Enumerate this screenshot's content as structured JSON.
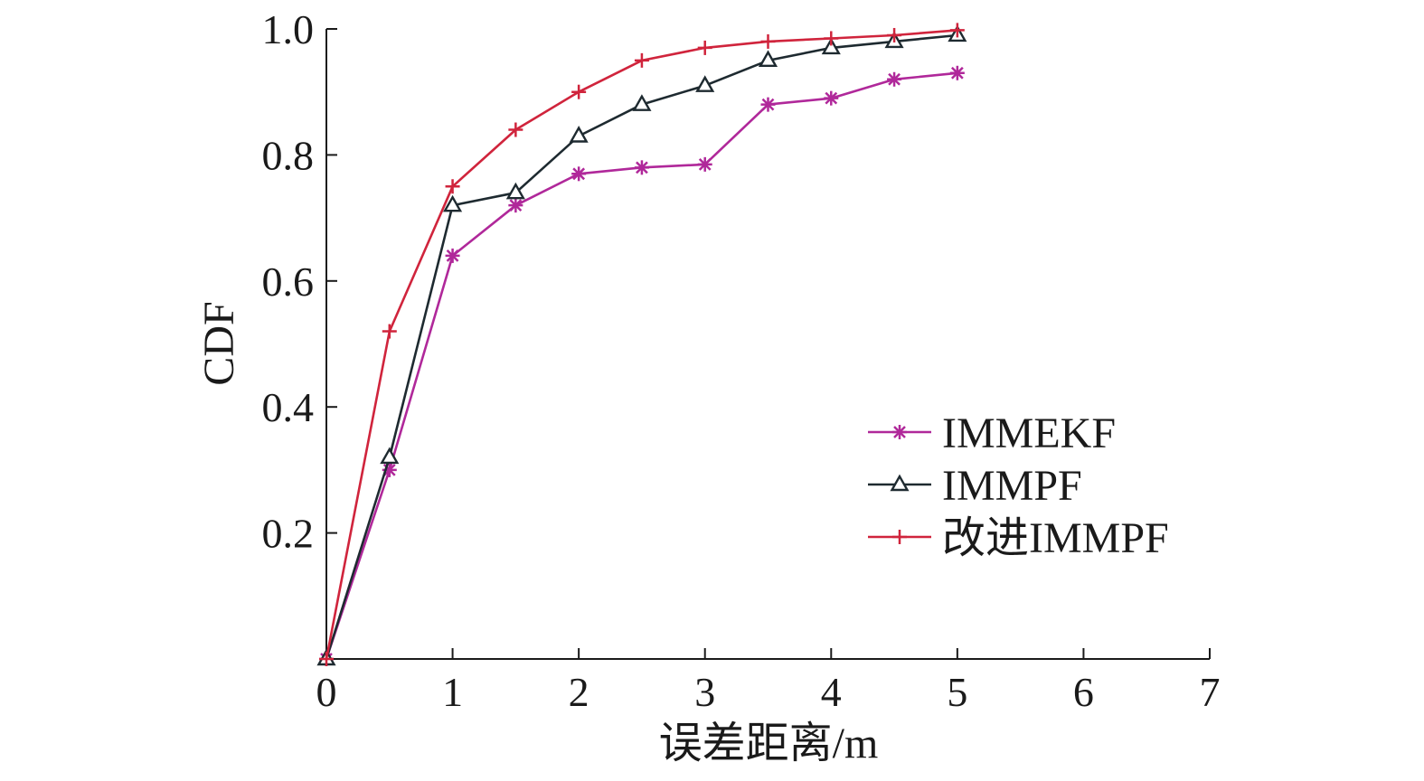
{
  "chart_data": {
    "type": "line",
    "title": "",
    "xlabel": "误差距离/m",
    "ylabel": "CDF",
    "xlim": [
      0,
      7
    ],
    "ylim": [
      0,
      1.0
    ],
    "x_ticks": [
      "0",
      "1",
      "2",
      "3",
      "4",
      "5",
      "6",
      "7"
    ],
    "y_ticks": [
      "0.2",
      "0.4",
      "0.6",
      "0.8",
      "1.0"
    ],
    "grid": false,
    "legend_position": "right",
    "series": [
      {
        "name": "IMMEKF",
        "color": "#b0289a",
        "marker": "asterisk",
        "x": [
          0,
          0.5,
          1,
          1.5,
          2,
          2.5,
          3,
          3.5,
          4,
          4.5,
          5
        ],
        "y": [
          0,
          0.3,
          0.64,
          0.72,
          0.77,
          0.78,
          0.785,
          0.88,
          0.89,
          0.92,
          0.93
        ]
      },
      {
        "name": "IMMPF",
        "color": "#1e2a30",
        "marker": "triangle",
        "x": [
          0,
          0.5,
          1,
          1.5,
          2,
          2.5,
          3,
          3.5,
          4,
          4.5,
          5
        ],
        "y": [
          0,
          0.32,
          0.72,
          0.74,
          0.83,
          0.88,
          0.91,
          0.95,
          0.97,
          0.98,
          0.99
        ]
      },
      {
        "name": "改进IMMPF",
        "color": "#d0243c",
        "marker": "plus",
        "x": [
          0,
          0.5,
          1,
          1.5,
          2,
          2.5,
          3,
          3.5,
          4,
          4.5,
          5
        ],
        "y": [
          0,
          0.52,
          0.75,
          0.84,
          0.9,
          0.95,
          0.97,
          0.98,
          0.985,
          0.99,
          0.998
        ]
      }
    ]
  }
}
